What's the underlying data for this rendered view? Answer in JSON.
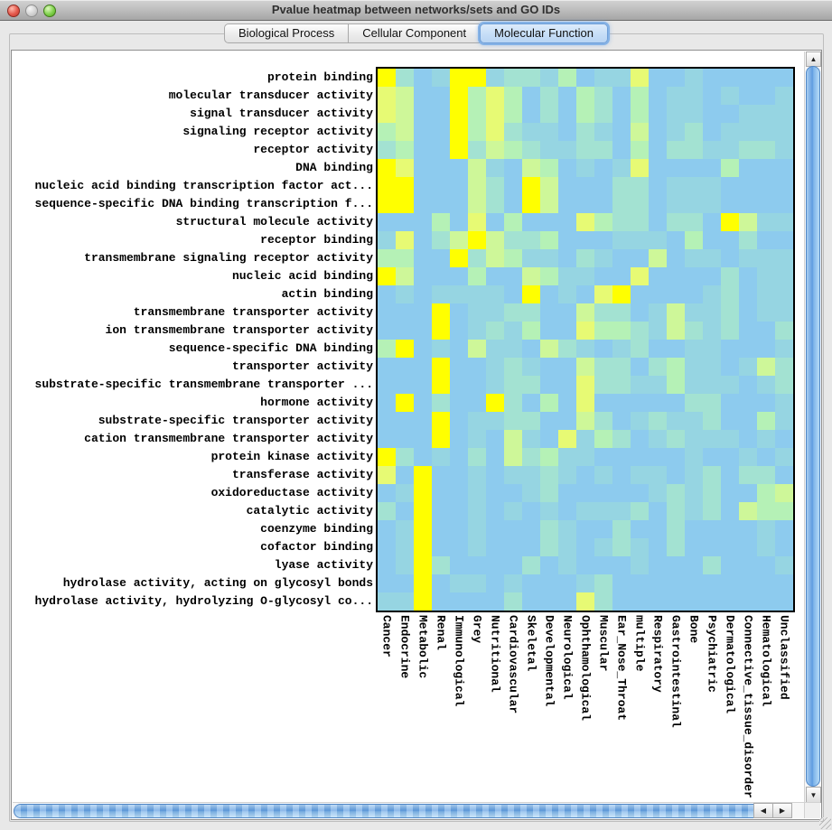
{
  "window": {
    "title": "Pvalue heatmap between networks/sets and GO IDs",
    "traffic_lights": {
      "close": "close-button",
      "minimize": "minimize-button",
      "zoom": "zoom-button"
    }
  },
  "tabs": [
    {
      "label": "Biological Process",
      "selected": false
    },
    {
      "label": "Cellular Component",
      "selected": false
    },
    {
      "label": "Molecular Function",
      "selected": true
    }
  ],
  "chart_data": {
    "type": "heatmap",
    "title": "Pvalue heatmap between networks/sets and GO IDs",
    "rows": [
      "protein binding",
      "molecular transducer activity",
      "signal transducer activity",
      "signaling receptor activity",
      "receptor activity",
      "DNA binding",
      "nucleic acid binding transcription factor act...",
      "sequence-specific DNA binding transcription f...",
      "structural molecule activity",
      "receptor binding",
      "transmembrane signaling receptor activity",
      "nucleic acid binding",
      "actin binding",
      "transmembrane transporter activity",
      "ion transmembrane transporter activity",
      "sequence-specific DNA binding",
      "transporter activity",
      "substrate-specific transmembrane transporter ...",
      "hormone activity",
      "substrate-specific transporter activity",
      "cation transmembrane transporter activity",
      "protein kinase activity",
      "transferase activity",
      "oxidoreductase activity",
      "catalytic activity",
      "coenzyme binding",
      "cofactor binding",
      "lyase activity",
      "hydrolase activity, acting on glycosyl bonds",
      "hydrolase activity, hydrolyzing O-glycosyl co..."
    ],
    "columns": [
      "Cancer",
      "Endocrine",
      "Metabolic",
      "Renal",
      "Immunological",
      "Grey",
      "Nutritional",
      "Cardiovascular",
      "Skeletal",
      "Developmental",
      "Neurological",
      "Ophthamological",
      "Muscular",
      "Ear_Nose_Throat",
      "multiple",
      "Respiratory",
      "Gastrointestinal",
      "Bone",
      "Psychiatric",
      "Dermatological",
      "Connective_tissue_disorder",
      "Hematological",
      "Unclassified"
    ],
    "palette": [
      "#FFFF00",
      "#E7FA74",
      "#CEF799",
      "#B5F1B6",
      "#A3E2D2",
      "#96D5E2",
      "#8DCBEE"
    ],
    "palette_meaning": "0 = most significant pvalue (yellow) through 6 = least significant (light blue)",
    "cells": [
      "04650054453655166566666",
      "12660313646346365565665",
      "12660313646346365566555",
      "32660314556456265465555",
      "43660423455446364455445",
      "01666256236565166663666",
      "00666246026664465556666",
      "00666246026664465556666",
      "66636163666134464460255",
      "51642024436665556366466",
      "33660423556456626556555",
      "02666366235566166664655",
      "65655556065610666654655",
      "66606554466244652554655",
      "66606545366133452454664",
      "30656255624565466556665",
      "66606654566244643556524",
      "66606654466144553555654",
      "60646604636166666446665",
      "66606554466246545546635",
      "66606562561534654555656",
      "04656462435566666566565",
      "16066565545656556546446",
      "65066566546666654546632",
      "46066565656555464546233",
      "65066566645664664666656",
      "65066566645654564666656",
      "65046666465666566646665",
      "66065565666546666666666",
      "55066664666146666666666"
    ]
  },
  "scrollbars": {
    "up_arrow": "▲",
    "down_arrow": "▼",
    "left_arrow": "◀",
    "right_arrow": "▶"
  }
}
